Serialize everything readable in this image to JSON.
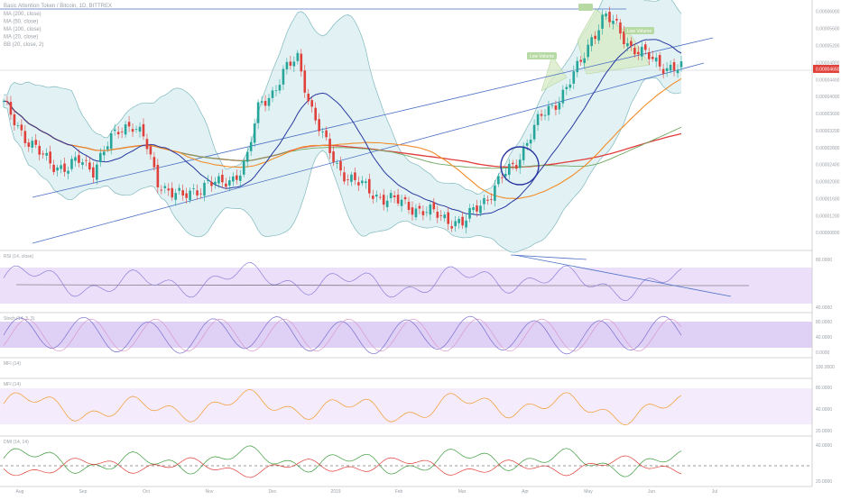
{
  "chart_data": {
    "type": "line",
    "title": "Basic Attention Token / Bitcoin, 1D, BITTREX",
    "indicator_legend": [
      "MA (200, close)",
      "MA (50, close)",
      "MA (100, close)",
      "MA (20, close)",
      "BB (20, close, 2)"
    ],
    "price_axis": {
      "ticks": [
        "0.00006000",
        "0.00005600",
        "0.00005200",
        "0.00004800",
        "0.00004400",
        "0.00004000",
        "0.00003600",
        "0.00003200",
        "0.00002800",
        "0.00002400",
        "0.00002000",
        "0.00001600",
        "0.00001200",
        "0.00000800"
      ],
      "last_price": "0.00004650",
      "ylim": [
        5.5e-06,
        6.1e-05
      ]
    },
    "time_axis": [
      "Aug",
      "Sep",
      "Oct",
      "Nov",
      "Dec",
      "2019",
      "Feb",
      "Mar",
      "Apr",
      "May",
      "Jun",
      "Jul"
    ],
    "close_series": [
      3.8e-05,
      3.4e-05,
      2.9e-05,
      2.6e-05,
      2.4e-05,
      2.3e-05,
      2.5e-05,
      2.3e-05,
      2.8e-05,
      3.2e-05,
      3.4e-05,
      3e-05,
      2e-05,
      1.8e-05,
      1.6e-05,
      1.8e-05,
      2e-05,
      1.9e-05,
      2.1e-05,
      2.5e-05,
      3.8e-05,
      4.1e-05,
      4.6e-05,
      4.9e-05,
      3.8e-05,
      3e-05,
      2.4e-05,
      2.1e-05,
      1.9e-05,
      1.7e-05,
      1.6e-05,
      1.5e-05,
      1.4e-05,
      1.3e-05,
      1.2e-05,
      1.1e-05,
      1e-05,
      1.4e-05,
      1.7e-05,
      2.1e-05,
      2.4e-05,
      3e-05,
      3.5e-05,
      3.8e-05,
      4.2e-05,
      4.7e-05,
      5.4e-05,
      5.9e-05,
      5.6e-05,
      5.2e-05,
      5e-05,
      4.8e-05,
      4.7e-05,
      4.65e-05
    ],
    "annotations": [
      "Low Volume",
      "Low Volume"
    ],
    "panes": [
      {
        "name": "RSI (14, close)",
        "ticks": [
          "80.0000",
          "40.0000"
        ]
      },
      {
        "name": "Stoch (14, 3, 3)",
        "ticks": [
          "80.0000",
          "40.0000",
          "0.0000"
        ]
      },
      {
        "name": "MFI (14)",
        "ticks": [
          "100.0000"
        ]
      },
      {
        "name": "MFI (14)",
        "ticks": [
          "80.0000",
          "40.0000",
          "20.0000"
        ]
      },
      {
        "name": "DMI (14, 14)",
        "ticks": [
          "40.0000",
          "20.0000"
        ]
      }
    ]
  }
}
